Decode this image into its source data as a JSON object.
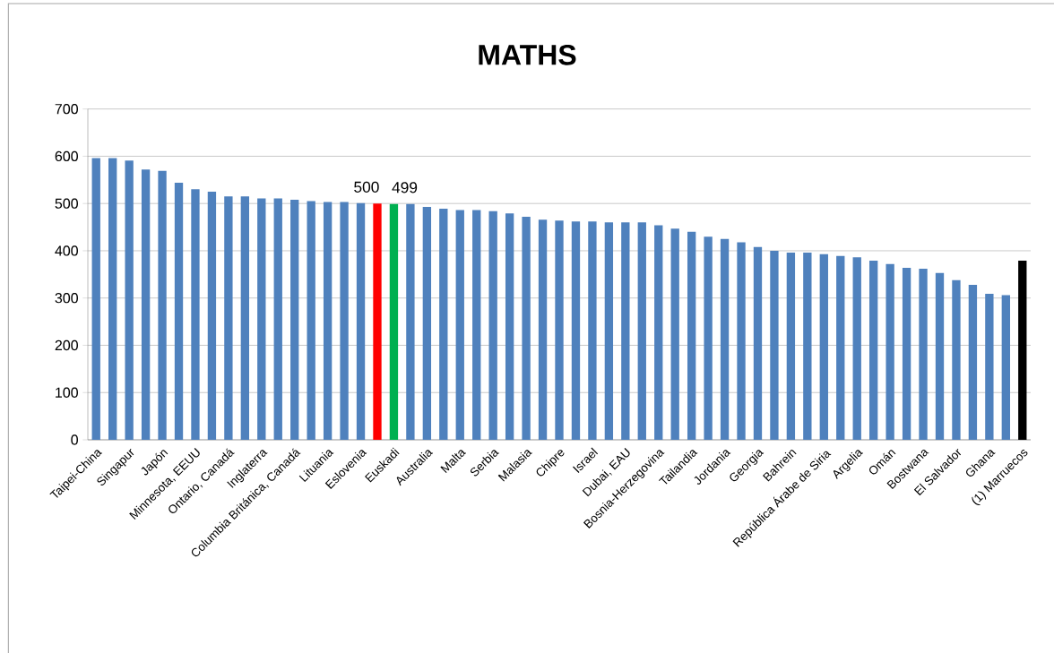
{
  "chart_data": {
    "type": "bar",
    "title": "MATHS",
    "categories": [
      "Taipei-China",
      null,
      "Singapur",
      null,
      "Japón",
      null,
      "Minnesota, EEUU",
      null,
      "Ontario, Canadá",
      null,
      "Inglaterra",
      null,
      "Columbia Británica, Canadá",
      null,
      "Lituania",
      null,
      "Eslovenia",
      null,
      "Euskadi",
      null,
      "Australia",
      null,
      "Malta",
      null,
      "Serbia",
      null,
      "Malasia",
      null,
      "Chipre",
      null,
      "Israel",
      null,
      "Dubai, EAU",
      null,
      "Bosnia-Herzegovina",
      null,
      "Tailandia",
      null,
      "Jordania",
      null,
      "Georgia",
      null,
      "Bahrein",
      null,
      "República Árabe de Siria",
      null,
      "Argelia",
      null,
      "Omán",
      null,
      "Bostwana",
      null,
      "El Salvador",
      null,
      "Ghana",
      null,
      "(1) Marruecos"
    ],
    "values": [
      596,
      596,
      591,
      572,
      569,
      544,
      530,
      525,
      515,
      515,
      511,
      511,
      508,
      505,
      503,
      503,
      501,
      500,
      499,
      499,
      493,
      489,
      486,
      486,
      484,
      479,
      472,
      466,
      464,
      462,
      462,
      460,
      460,
      460,
      454,
      447,
      440,
      430,
      425,
      418,
      408,
      400,
      396,
      396,
      393,
      389,
      386,
      379,
      372,
      364,
      362,
      353,
      338,
      328,
      309,
      306,
      379
    ],
    "colors": [
      "#4f81bd",
      "#4f81bd",
      "#4f81bd",
      "#4f81bd",
      "#4f81bd",
      "#4f81bd",
      "#4f81bd",
      "#4f81bd",
      "#4f81bd",
      "#4f81bd",
      "#4f81bd",
      "#4f81bd",
      "#4f81bd",
      "#4f81bd",
      "#4f81bd",
      "#4f81bd",
      "#4f81bd",
      "#ff0000",
      "#00b050",
      "#4f81bd",
      "#4f81bd",
      "#4f81bd",
      "#4f81bd",
      "#4f81bd",
      "#4f81bd",
      "#4f81bd",
      "#4f81bd",
      "#4f81bd",
      "#4f81bd",
      "#4f81bd",
      "#4f81bd",
      "#4f81bd",
      "#4f81bd",
      "#4f81bd",
      "#4f81bd",
      "#4f81bd",
      "#4f81bd",
      "#4f81bd",
      "#4f81bd",
      "#4f81bd",
      "#4f81bd",
      "#4f81bd",
      "#4f81bd",
      "#4f81bd",
      "#4f81bd",
      "#4f81bd",
      "#4f81bd",
      "#4f81bd",
      "#4f81bd",
      "#4f81bd",
      "#4f81bd",
      "#4f81bd",
      "#4f81bd",
      "#4f81bd",
      "#4f81bd",
      "#4f81bd",
      "#000000"
    ],
    "value_labels": [
      null,
      null,
      null,
      null,
      null,
      null,
      null,
      null,
      null,
      null,
      null,
      null,
      null,
      null,
      null,
      null,
      null,
      "500",
      "499",
      null,
      null,
      null,
      null,
      null,
      null,
      null,
      null,
      null,
      null,
      null,
      null,
      null,
      null,
      null,
      null,
      null,
      null,
      null,
      null,
      null,
      null,
      null,
      null,
      null,
      null,
      null,
      null,
      null,
      null,
      null,
      null,
      null,
      null,
      null,
      null,
      null,
      null
    ],
    "ylim": [
      0,
      700
    ],
    "yticks": [
      0,
      100,
      200,
      300,
      400,
      500,
      600,
      700
    ],
    "grid": "y"
  }
}
